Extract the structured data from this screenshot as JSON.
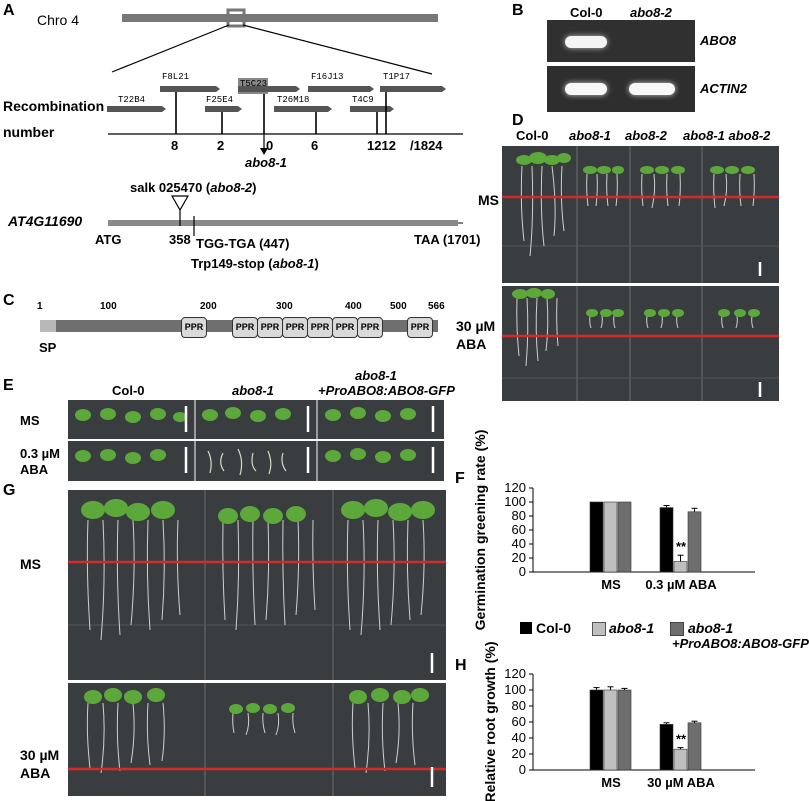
{
  "panel_letters": [
    "A",
    "B",
    "C",
    "D",
    "E",
    "F",
    "G",
    "H"
  ],
  "panel_a": {
    "chromosome_label": "Chro 4",
    "bacs_top": [
      "F8L21",
      "T5C23",
      "F16J13",
      "T1P17"
    ],
    "bacs_bottom": [
      "T22B4",
      "F25E4",
      "T26M18",
      "T4C9"
    ],
    "recombination_label_1": "Recombination",
    "recombination_label_2": "number",
    "recombination_numbers": [
      "8",
      "2",
      "0",
      "6",
      "1212",
      "/1824"
    ],
    "mutant_marker": "abo8-1",
    "tdna_label": "salk 025470 (",
    "tdna_label_mut": "abo8-2",
    "tdna_label_end": ")",
    "gene_name": "AT4G11690",
    "start_codon": "ATG",
    "position_358": "358",
    "mutation": "TGG-TGA (447)",
    "stop_codon": "TAA (1701)",
    "trp_label": "Trp149-stop (",
    "trp_label_mut": "abo8-1",
    "trp_label_end": ")"
  },
  "panel_b": {
    "col_headers": [
      "Col-0",
      "abo8-2"
    ],
    "row_labels": [
      "ABO8",
      "ACTIN2"
    ]
  },
  "panel_c": {
    "ticks": [
      "1",
      "100",
      "200",
      "300",
      "400",
      "500",
      "566"
    ],
    "domain_label": "PPR",
    "signal_label": "SP"
  },
  "panel_d": {
    "col_headers": [
      "Col-0",
      "abo8-1",
      "abo8-2",
      "abo8-1 abo8-2"
    ],
    "row_label_ms": "MS",
    "row_label_aba_1": "30 µM",
    "row_label_aba_2": "ABA"
  },
  "panel_e": {
    "col_headers": [
      "Col-0",
      "abo8-1",
      "abo8-1",
      "+ProABO8:ABO8-GFP"
    ],
    "row_label_ms": "MS",
    "row_label_aba_1": "0.3 µM",
    "row_label_aba_2": "ABA"
  },
  "panel_g": {
    "row_label_ms": "MS",
    "row_label_aba_1": "30 µM",
    "row_label_aba_2": "ABA"
  },
  "legend": {
    "entries": [
      "Col-0",
      "abo8-1",
      "abo8-1",
      "+ProABO8:ABO8-GFP"
    ],
    "colors": [
      "#000000",
      "#bfbfbf",
      "#6e6e6e"
    ]
  },
  "colors": {
    "red_line": "#d62a2a",
    "photo_bg": "#3a3d3f",
    "plant_green": "#5da83a"
  },
  "chart_data": [
    {
      "panel": "F",
      "type": "bar",
      "ylabel": "Germination greening rate (%)",
      "categories": [
        "MS",
        "0.3 µM ABA"
      ],
      "ylim": [
        0,
        120
      ],
      "yticks": [
        "0",
        "20",
        "40",
        "60",
        "80",
        "100",
        "120"
      ],
      "series": [
        {
          "name": "Col-0",
          "values": [
            100,
            92
          ],
          "errors": [
            0,
            3
          ]
        },
        {
          "name": "abo8-1",
          "values": [
            100,
            15
          ],
          "errors": [
            0,
            9
          ]
        },
        {
          "name": "abo8-1 +ProABO8:ABO8-GFP",
          "values": [
            100,
            86
          ],
          "errors": [
            0,
            5
          ]
        }
      ],
      "annotation": "**"
    },
    {
      "panel": "H",
      "type": "bar",
      "ylabel": "Relative root growth (%)",
      "categories": [
        "MS",
        "30 µM ABA"
      ],
      "ylim": [
        0,
        120
      ],
      "yticks": [
        "0",
        "20",
        "40",
        "60",
        "80",
        "100",
        "120"
      ],
      "series": [
        {
          "name": "Col-0",
          "values": [
            100,
            57
          ],
          "errors": [
            3,
            2
          ]
        },
        {
          "name": "abo8-1",
          "values": [
            100,
            26
          ],
          "errors": [
            4,
            2
          ]
        },
        {
          "name": "abo8-1 +ProABO8:ABO8-GFP",
          "values": [
            100,
            59
          ],
          "errors": [
            2,
            2
          ]
        }
      ],
      "annotation": "**"
    }
  ]
}
